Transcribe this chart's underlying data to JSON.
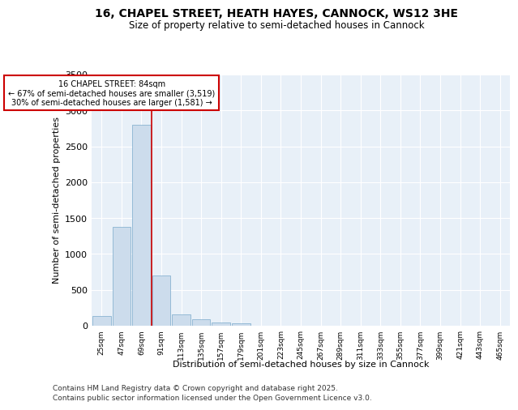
{
  "title1": "16, CHAPEL STREET, HEATH HAYES, CANNOCK, WS12 3HE",
  "title2": "Size of property relative to semi-detached houses in Cannock",
  "xlabel": "Distribution of semi-detached houses by size in Cannock",
  "ylabel": "Number of semi-detached properties",
  "bin_labels": [
    "25sqm",
    "47sqm",
    "69sqm",
    "91sqm",
    "113sqm",
    "135sqm",
    "157sqm",
    "179sqm",
    "201sqm",
    "223sqm",
    "245sqm",
    "267sqm",
    "289sqm",
    "311sqm",
    "333sqm",
    "355sqm",
    "377sqm",
    "399sqm",
    "421sqm",
    "443sqm",
    "465sqm"
  ],
  "bar_values": [
    140,
    1380,
    2800,
    700,
    160,
    90,
    50,
    30,
    0,
    0,
    0,
    0,
    0,
    0,
    0,
    0,
    0,
    0,
    0,
    0,
    0
  ],
  "bar_color": "#ccdcec",
  "bar_edge_color": "#7aaacb",
  "red_line_x": 3.0,
  "annotation_title": "16 CHAPEL STREET: 84sqm",
  "annotation_line1": "← 67% of semi-detached houses are smaller (3,519)",
  "annotation_line2": "30% of semi-detached houses are larger (1,581) →",
  "annotation_box_color": "#ffffff",
  "annotation_box_edge": "#cc0000",
  "red_line_color": "#cc0000",
  "background_color": "#e8f0f8",
  "footer1": "Contains HM Land Registry data © Crown copyright and database right 2025.",
  "footer2": "Contains public sector information licensed under the Open Government Licence v3.0.",
  "ylim": [
    0,
    3500
  ],
  "yticks": [
    0,
    500,
    1000,
    1500,
    2000,
    2500,
    3000,
    3500
  ]
}
